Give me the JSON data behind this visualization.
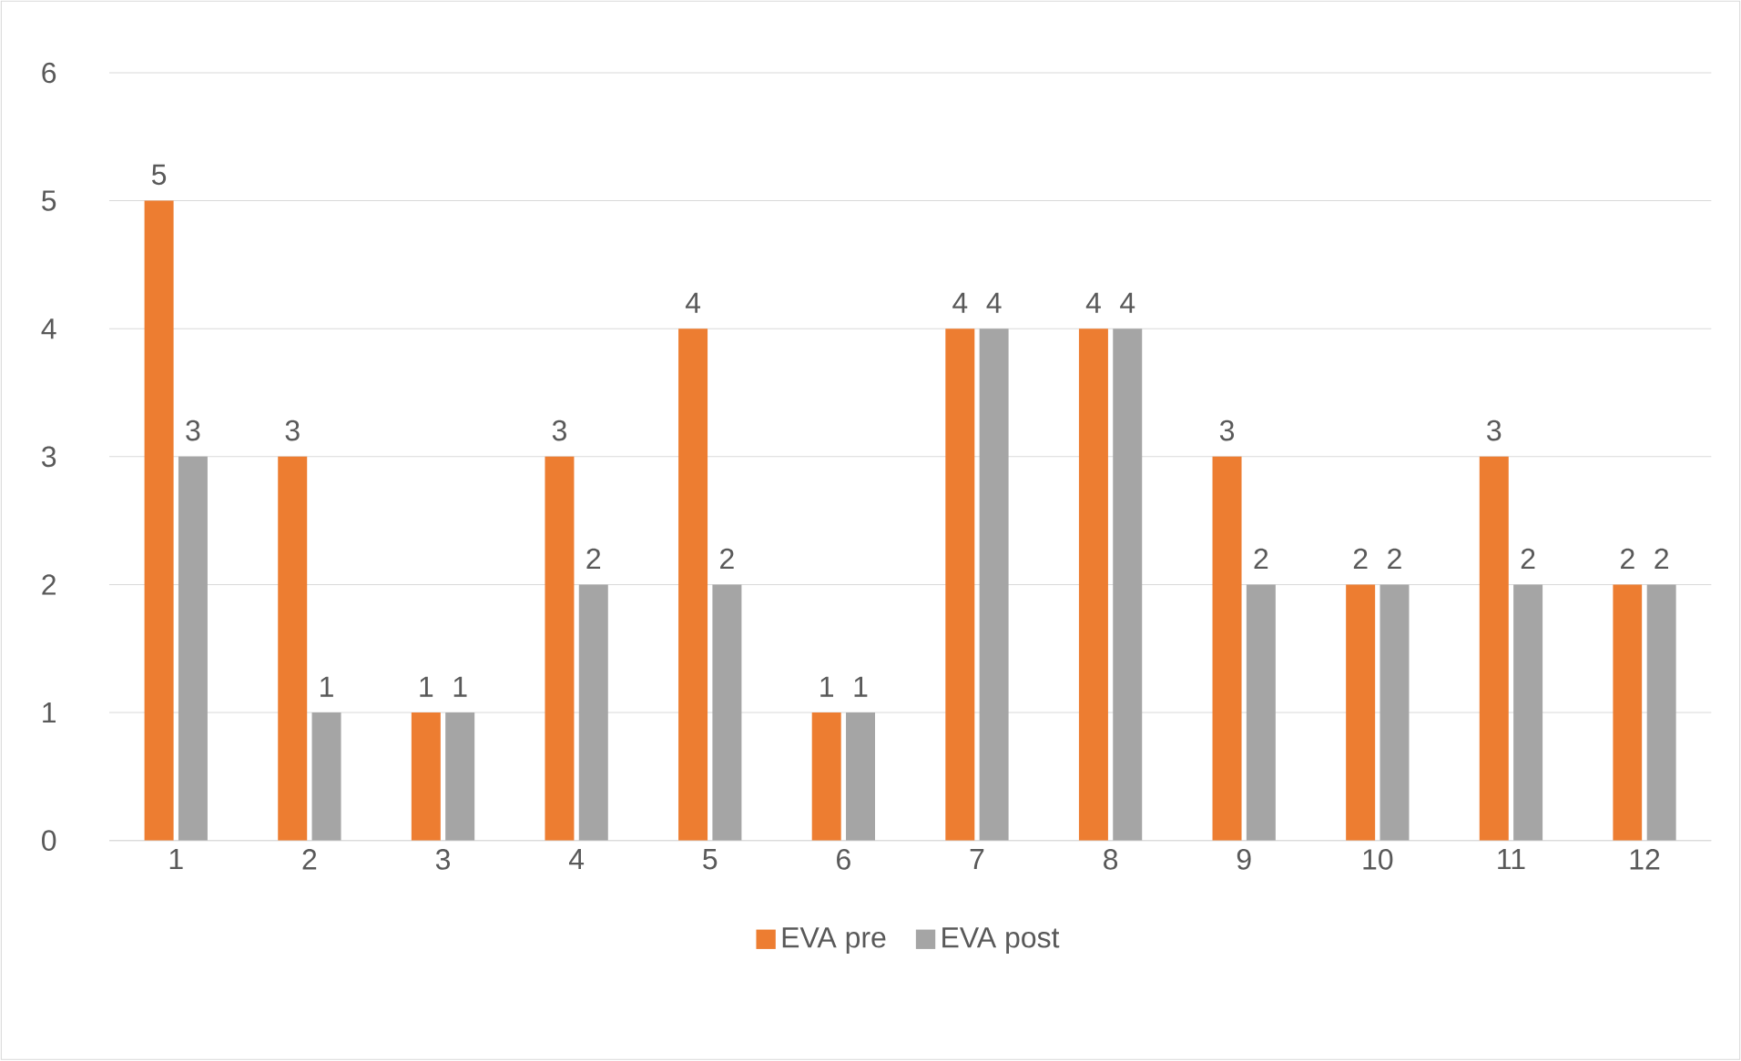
{
  "chart_data": {
    "type": "bar",
    "categories": [
      "1",
      "2",
      "3",
      "4",
      "5",
      "6",
      "7",
      "8",
      "9",
      "10",
      "11",
      "12"
    ],
    "series": [
      {
        "name": "EVA pre",
        "color": "#ed7d31",
        "values": [
          5,
          3,
          1,
          3,
          4,
          1,
          4,
          4,
          3,
          2,
          3,
          2
        ]
      },
      {
        "name": "EVA post",
        "color": "#a5a5a5",
        "values": [
          3,
          1,
          1,
          2,
          2,
          1,
          4,
          4,
          2,
          2,
          2,
          2
        ]
      }
    ],
    "ylim": [
      0,
      6
    ],
    "yticks": [
      0,
      1,
      2,
      3,
      4,
      5,
      6
    ],
    "grid": "y",
    "legend": "bottom",
    "data_labels": true
  }
}
